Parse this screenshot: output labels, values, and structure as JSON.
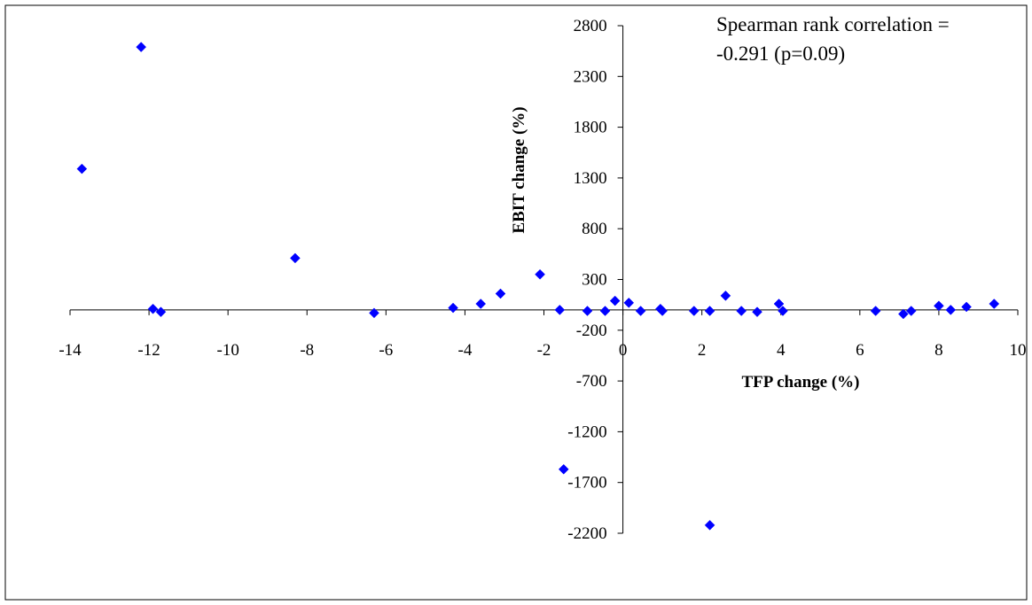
{
  "chart_data": {
    "type": "scatter",
    "title": "",
    "xlabel": "TFP change (%)",
    "ylabel": "EBIT change  (%)",
    "xlim": [
      -14,
      10
    ],
    "ylim": [
      -2200,
      2800
    ],
    "xticks": [
      -14,
      -12,
      -10,
      -8,
      -6,
      -4,
      -2,
      0,
      2,
      4,
      6,
      8,
      10
    ],
    "yticks": [
      -2200,
      -1700,
      -1200,
      -700,
      -200,
      300,
      800,
      1300,
      1800,
      2300,
      2800
    ],
    "grid": false,
    "legend": "none",
    "marker": "diamond",
    "marker_color": "#0000FF",
    "annotation": {
      "line1": "Spearman rank correlation =",
      "line2": "-0.291 (p=0.09)"
    },
    "points": [
      {
        "x": -13.7,
        "y": 1390
      },
      {
        "x": -12.2,
        "y": 2590
      },
      {
        "x": -11.9,
        "y": 10
      },
      {
        "x": -11.7,
        "y": -20
      },
      {
        "x": -8.3,
        "y": 510
      },
      {
        "x": -6.3,
        "y": -30
      },
      {
        "x": -4.3,
        "y": 20
      },
      {
        "x": -3.6,
        "y": 60
      },
      {
        "x": -3.1,
        "y": 160
      },
      {
        "x": -2.1,
        "y": 350
      },
      {
        "x": -1.6,
        "y": 0
      },
      {
        "x": -1.5,
        "y": -1570
      },
      {
        "x": -0.9,
        "y": -10
      },
      {
        "x": -0.45,
        "y": -10
      },
      {
        "x": -0.2,
        "y": 90
      },
      {
        "x": 0.15,
        "y": 70
      },
      {
        "x": 0.45,
        "y": -10
      },
      {
        "x": 0.95,
        "y": 10
      },
      {
        "x": 1.0,
        "y": -10
      },
      {
        "x": 1.8,
        "y": -10
      },
      {
        "x": 2.2,
        "y": -10
      },
      {
        "x": 2.2,
        "y": -2120
      },
      {
        "x": 2.6,
        "y": 140
      },
      {
        "x": 3.0,
        "y": -10
      },
      {
        "x": 3.4,
        "y": -20
      },
      {
        "x": 3.95,
        "y": 60
      },
      {
        "x": 4.05,
        "y": -10
      },
      {
        "x": 6.4,
        "y": -10
      },
      {
        "x": 7.1,
        "y": -40
      },
      {
        "x": 7.3,
        "y": -10
      },
      {
        "x": 8.0,
        "y": 40
      },
      {
        "x": 8.3,
        "y": 0
      },
      {
        "x": 8.7,
        "y": 30
      },
      {
        "x": 9.4,
        "y": 60
      }
    ]
  }
}
